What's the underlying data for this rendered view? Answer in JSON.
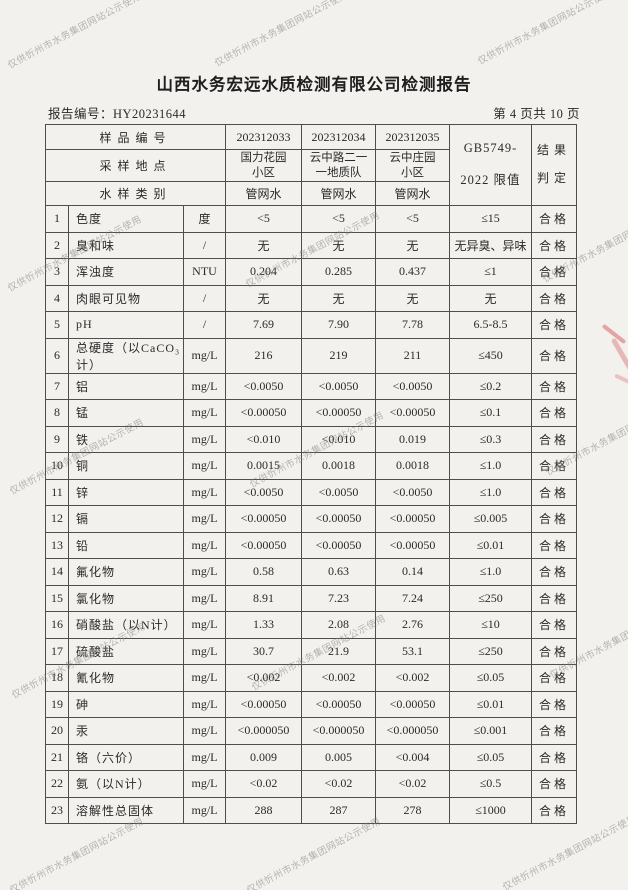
{
  "watermark": {
    "text": "仅供忻州市水务集团网站公示使用"
  },
  "header": {
    "title": "山西水务宏远水质检测有限公司检测报告",
    "report_no_line": "报告编号：HY20231644",
    "page_indicator": "第 4 页共 10 页"
  },
  "table": {
    "head": {
      "sample_no_label": "样品编号",
      "location_label": "采样地点",
      "water_type_label": "水样类别",
      "sample_nos": [
        "202312033",
        "202312034",
        "202312035"
      ],
      "locations": [
        "国力花园\n小区",
        "云中路二一\n一地质队",
        "云中庄园\n小区"
      ],
      "water_types": [
        "管网水",
        "管网水",
        "管网水"
      ],
      "limit_header": "GB5749-\n2022 限值",
      "result_header": "结果\n判定"
    },
    "rows": [
      {
        "no": "1",
        "name": "色度",
        "unit": "度",
        "v1": "<5",
        "v2": "<5",
        "v3": "<5",
        "limit": "≤15",
        "result": "合格"
      },
      {
        "no": "2",
        "name": "臭和味",
        "unit": "/",
        "v1": "无",
        "v2": "无",
        "v3": "无",
        "limit": "无异臭、异味",
        "result": "合格"
      },
      {
        "no": "3",
        "name": "浑浊度",
        "unit": "NTU",
        "v1": "0.204",
        "v2": "0.285",
        "v3": "0.437",
        "limit": "≤1",
        "result": "合格"
      },
      {
        "no": "4",
        "name": "肉眼可见物",
        "unit": "/",
        "v1": "无",
        "v2": "无",
        "v3": "无",
        "limit": "无",
        "result": "合格"
      },
      {
        "no": "5",
        "name": "pH",
        "unit": "/",
        "v1": "7.69",
        "v2": "7.90",
        "v3": "7.78",
        "limit": "6.5-8.5",
        "result": "合格"
      },
      {
        "no": "6",
        "name": "总硬度（以CaCO₃计）",
        "unit": "mg/L",
        "v1": "216",
        "v2": "219",
        "v3": "211",
        "limit": "≤450",
        "result": "合格"
      },
      {
        "no": "7",
        "name": "铝",
        "unit": "mg/L",
        "v1": "<0.0050",
        "v2": "<0.0050",
        "v3": "<0.0050",
        "limit": "≤0.2",
        "result": "合格"
      },
      {
        "no": "8",
        "name": "锰",
        "unit": "mg/L",
        "v1": "<0.00050",
        "v2": "<0.00050",
        "v3": "<0.00050",
        "limit": "≤0.1",
        "result": "合格"
      },
      {
        "no": "9",
        "name": "铁",
        "unit": "mg/L",
        "v1": "<0.010",
        "v2": "<0.010",
        "v3": "0.019",
        "limit": "≤0.3",
        "result": "合格"
      },
      {
        "no": "10",
        "name": "铜",
        "unit": "mg/L",
        "v1": "0.0015",
        "v2": "0.0018",
        "v3": "0.0018",
        "limit": "≤1.0",
        "result": "合格"
      },
      {
        "no": "11",
        "name": "锌",
        "unit": "mg/L",
        "v1": "<0.0050",
        "v2": "<0.0050",
        "v3": "<0.0050",
        "limit": "≤1.0",
        "result": "合格"
      },
      {
        "no": "12",
        "name": "镉",
        "unit": "mg/L",
        "v1": "<0.00050",
        "v2": "<0.00050",
        "v3": "<0.00050",
        "limit": "≤0.005",
        "result": "合格"
      },
      {
        "no": "13",
        "name": "铅",
        "unit": "mg/L",
        "v1": "<0.00050",
        "v2": "<0.00050",
        "v3": "<0.00050",
        "limit": "≤0.01",
        "result": "合格"
      },
      {
        "no": "14",
        "name": "氟化物",
        "unit": "mg/L",
        "v1": "0.58",
        "v2": "0.63",
        "v3": "0.14",
        "limit": "≤1.0",
        "result": "合格"
      },
      {
        "no": "15",
        "name": "氯化物",
        "unit": "mg/L",
        "v1": "8.91",
        "v2": "7.23",
        "v3": "7.24",
        "limit": "≤250",
        "result": "合格"
      },
      {
        "no": "16",
        "name": "硝酸盐（以N计）",
        "unit": "mg/L",
        "v1": "1.33",
        "v2": "2.08",
        "v3": "2.76",
        "limit": "≤10",
        "result": "合格"
      },
      {
        "no": "17",
        "name": "硫酸盐",
        "unit": "mg/L",
        "v1": "30.7",
        "v2": "21.9",
        "v3": "53.1",
        "limit": "≤250",
        "result": "合格"
      },
      {
        "no": "18",
        "name": "氰化物",
        "unit": "mg/L",
        "v1": "<0.002",
        "v2": "<0.002",
        "v3": "<0.002",
        "limit": "≤0.05",
        "result": "合格"
      },
      {
        "no": "19",
        "name": "砷",
        "unit": "mg/L",
        "v1": "<0.00050",
        "v2": "<0.00050",
        "v3": "<0.00050",
        "limit": "≤0.01",
        "result": "合格"
      },
      {
        "no": "20",
        "name": "汞",
        "unit": "mg/L",
        "v1": "<0.000050",
        "v2": "<0.000050",
        "v3": "<0.000050",
        "limit": "≤0.001",
        "result": "合格"
      },
      {
        "no": "21",
        "name": "铬（六价）",
        "unit": "mg/L",
        "v1": "0.009",
        "v2": "0.005",
        "v3": "<0.004",
        "limit": "≤0.05",
        "result": "合格"
      },
      {
        "no": "22",
        "name": "氨（以N计）",
        "unit": "mg/L",
        "v1": "<0.02",
        "v2": "<0.02",
        "v3": "<0.02",
        "limit": "≤0.5",
        "result": "合格"
      },
      {
        "no": "23",
        "name": "溶解性总固体",
        "unit": "mg/L",
        "v1": "288",
        "v2": "287",
        "v3": "278",
        "limit": "≤1000",
        "result": "合格"
      }
    ]
  }
}
